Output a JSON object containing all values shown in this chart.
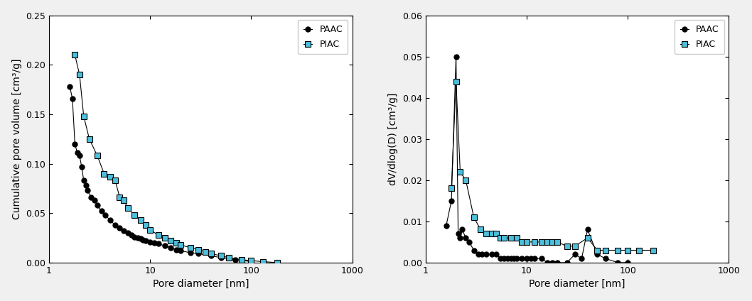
{
  "paac_cumulative_x": [
    1.6,
    1.7,
    1.8,
    1.9,
    2.0,
    2.1,
    2.2,
    2.3,
    2.4,
    2.6,
    2.8,
    3.0,
    3.3,
    3.6,
    4.0,
    4.5,
    5.0,
    5.5,
    6.0,
    6.5,
    7.0,
    7.5,
    8.0,
    8.5,
    9.0,
    10.0,
    11.0,
    12.0,
    14.0,
    16.0,
    18.0,
    20.0,
    25.0,
    30.0,
    40.0,
    50.0,
    70.0,
    100.0
  ],
  "paac_cumulative_y": [
    0.178,
    0.166,
    0.12,
    0.111,
    0.108,
    0.097,
    0.083,
    0.078,
    0.073,
    0.066,
    0.063,
    0.058,
    0.052,
    0.048,
    0.043,
    0.038,
    0.035,
    0.032,
    0.03,
    0.028,
    0.026,
    0.025,
    0.024,
    0.023,
    0.022,
    0.021,
    0.02,
    0.019,
    0.017,
    0.015,
    0.013,
    0.012,
    0.01,
    0.009,
    0.007,
    0.005,
    0.003,
    0.001
  ],
  "piac_cumulative_x": [
    1.8,
    2.0,
    2.2,
    2.5,
    3.0,
    3.5,
    4.0,
    4.5,
    5.0,
    5.5,
    6.0,
    7.0,
    8.0,
    9.0,
    10.0,
    12.0,
    14.0,
    16.0,
    18.0,
    20.0,
    25.0,
    30.0,
    35.0,
    40.0,
    50.0,
    60.0,
    80.0,
    100.0,
    130.0,
    180.0
  ],
  "piac_cumulative_y": [
    0.21,
    0.19,
    0.148,
    0.125,
    0.108,
    0.09,
    0.087,
    0.083,
    0.066,
    0.063,
    0.055,
    0.048,
    0.043,
    0.038,
    0.033,
    0.028,
    0.025,
    0.022,
    0.02,
    0.018,
    0.015,
    0.013,
    0.011,
    0.009,
    0.007,
    0.005,
    0.003,
    0.002,
    0.001,
    0.0
  ],
  "paac_dv_x": [
    1.6,
    1.8,
    2.0,
    2.1,
    2.2,
    2.3,
    2.5,
    2.7,
    3.0,
    3.3,
    3.6,
    4.0,
    4.5,
    5.0,
    5.5,
    6.0,
    6.5,
    7.0,
    7.5,
    8.0,
    9.0,
    10.0,
    11.0,
    12.0,
    14.0,
    16.0,
    18.0,
    20.0,
    25.0,
    30.0,
    35.0,
    40.0,
    50.0,
    60.0,
    80.0,
    100.0
  ],
  "paac_dv_y": [
    0.009,
    0.015,
    0.05,
    0.007,
    0.006,
    0.008,
    0.006,
    0.005,
    0.003,
    0.002,
    0.002,
    0.002,
    0.002,
    0.002,
    0.001,
    0.001,
    0.001,
    0.001,
    0.001,
    0.001,
    0.001,
    0.001,
    0.001,
    0.001,
    0.001,
    0.0,
    0.0,
    0.0,
    0.0,
    0.002,
    0.001,
    0.008,
    0.002,
    0.001,
    0.0,
    0.0
  ],
  "piac_dv_x": [
    1.8,
    2.0,
    2.2,
    2.5,
    3.0,
    3.5,
    4.0,
    4.5,
    5.0,
    5.5,
    6.0,
    7.0,
    8.0,
    9.0,
    10.0,
    12.0,
    14.0,
    16.0,
    18.0,
    20.0,
    25.0,
    30.0,
    40.0,
    50.0,
    60.0,
    80.0,
    100.0,
    130.0,
    180.0
  ],
  "piac_dv_y": [
    0.018,
    0.044,
    0.022,
    0.02,
    0.011,
    0.008,
    0.007,
    0.007,
    0.007,
    0.006,
    0.006,
    0.006,
    0.006,
    0.005,
    0.005,
    0.005,
    0.005,
    0.005,
    0.005,
    0.005,
    0.004,
    0.004,
    0.006,
    0.003,
    0.003,
    0.003,
    0.003,
    0.003,
    0.003
  ],
  "paac_color": "#000000",
  "piac_color": "#4dbfdb",
  "ylabel_left": "Cumulative pore volume [cm³/g]",
  "ylabel_right": "dV/dlog(D) [cm³/g]",
  "xlabel": "Pore diameter [nm]",
  "ylim_left": [
    0,
    0.25
  ],
  "ylim_right": [
    0,
    0.06
  ],
  "xlim": [
    1,
    1000
  ],
  "fig_facecolor": "#f0f0f0",
  "axes_facecolor": "#ffffff"
}
